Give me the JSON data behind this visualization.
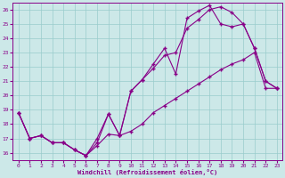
{
  "xlabel": "Windchill (Refroidissement éolien,°C)",
  "bg_color": "#cce8e8",
  "line_color": "#880088",
  "grid_color": "#99cccc",
  "xlim": [
    -0.5,
    23.5
  ],
  "ylim": [
    15.5,
    26.5
  ],
  "xticks": [
    0,
    1,
    2,
    3,
    4,
    5,
    6,
    7,
    8,
    9,
    10,
    11,
    12,
    13,
    14,
    15,
    16,
    17,
    18,
    19,
    20,
    21,
    22,
    23
  ],
  "yticks": [
    16,
    17,
    18,
    19,
    20,
    21,
    22,
    23,
    24,
    25,
    26
  ],
  "line1_x": [
    0,
    1,
    2,
    3,
    4,
    5,
    6,
    7,
    8,
    9,
    10,
    11,
    12,
    13,
    14,
    15,
    16,
    17,
    18,
    19,
    20,
    21,
    22,
    23
  ],
  "line1_y": [
    18.8,
    17.0,
    17.2,
    16.7,
    16.7,
    16.2,
    15.8,
    16.5,
    17.3,
    17.2,
    17.5,
    18.0,
    18.8,
    19.3,
    19.8,
    20.3,
    20.8,
    21.3,
    21.8,
    22.2,
    22.5,
    23.0,
    20.5,
    20.5
  ],
  "line2_x": [
    0,
    1,
    2,
    3,
    4,
    5,
    6,
    7,
    8,
    9,
    10,
    11,
    12,
    13,
    14,
    15,
    16,
    17,
    18,
    19,
    20,
    21,
    22,
    23
  ],
  "line2_y": [
    18.8,
    17.0,
    17.2,
    16.7,
    16.7,
    16.2,
    15.8,
    17.0,
    18.7,
    17.2,
    20.3,
    21.1,
    21.9,
    22.8,
    23.0,
    24.7,
    25.3,
    26.0,
    26.2,
    25.8,
    25.0,
    23.3,
    21.0,
    20.5
  ],
  "line3_x": [
    0,
    1,
    2,
    3,
    4,
    5,
    6,
    7,
    8,
    9,
    10,
    11,
    12,
    13,
    14,
    15,
    16,
    17,
    18,
    19,
    20,
    21,
    22,
    23
  ],
  "line3_y": [
    18.8,
    17.0,
    17.2,
    16.7,
    16.7,
    16.2,
    15.8,
    16.7,
    18.7,
    17.2,
    20.3,
    21.1,
    22.2,
    23.3,
    21.5,
    25.4,
    25.9,
    26.3,
    25.0,
    24.8,
    25.0,
    23.3,
    21.0,
    20.5
  ]
}
